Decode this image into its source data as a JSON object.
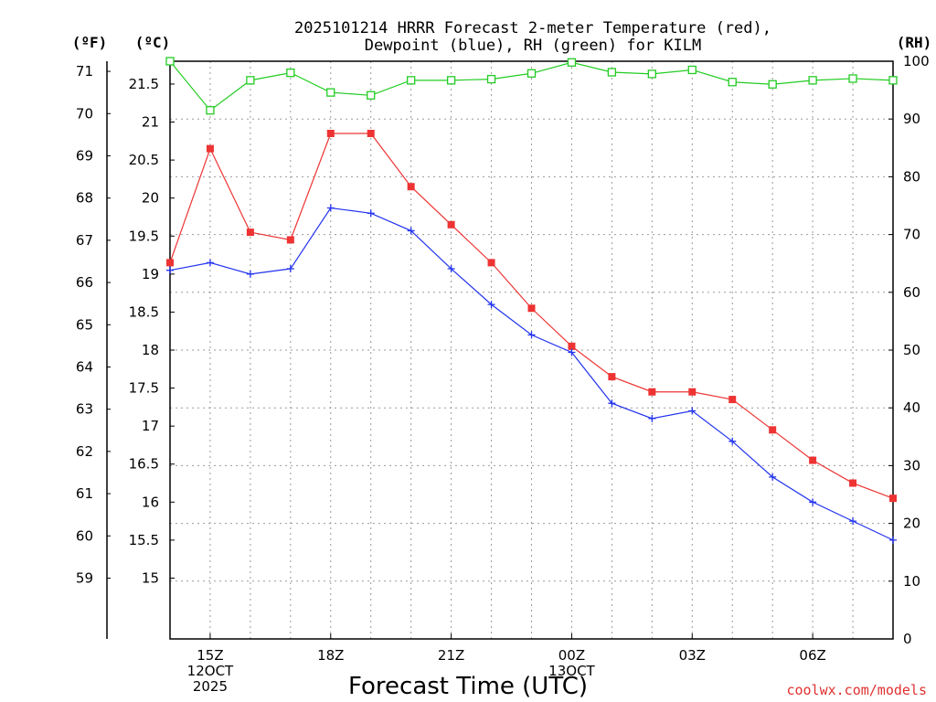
{
  "chart_data": {
    "type": "line",
    "title_line1": "2025101214 HRRR Forecast 2-meter Temperature (red),",
    "title_line2": "Dewpoint (blue), RH (green) for KILM",
    "units": {
      "left_outer": "(ºF)",
      "left_inner": "(ºC)",
      "right": "(RH)"
    },
    "xlabel": "Forecast Time (UTC)",
    "credit": "coolwx.com/models",
    "x_hours": [
      14,
      15,
      16,
      17,
      18,
      19,
      20,
      21,
      22,
      23,
      24,
      25,
      26,
      27,
      28,
      29,
      30,
      31,
      32
    ],
    "x_ticks": [
      {
        "hour": 15,
        "lines": [
          "15Z",
          "12OCT",
          "2025"
        ]
      },
      {
        "hour": 18,
        "lines": [
          "18Z"
        ]
      },
      {
        "hour": 21,
        "lines": [
          "21Z"
        ]
      },
      {
        "hour": 24,
        "lines": [
          "00Z",
          "13OCT"
        ]
      },
      {
        "hour": 27,
        "lines": [
          "03Z"
        ]
      },
      {
        "hour": 30,
        "lines": [
          "06Z"
        ]
      }
    ],
    "xlim": [
      14,
      32
    ],
    "celsius_axis": {
      "range": [
        14.2,
        21.8
      ],
      "ticks": [
        15,
        15.5,
        16,
        16.5,
        17,
        17.5,
        18,
        18.5,
        19,
        19.5,
        20,
        20.5,
        21,
        21.5
      ]
    },
    "fahrenheit_ticks": [
      59,
      60,
      61,
      62,
      63,
      64,
      65,
      66,
      67,
      68,
      69,
      70,
      71
    ],
    "rh_axis": {
      "range": [
        0,
        100
      ],
      "ticks": [
        0,
        10,
        20,
        30,
        40,
        50,
        60,
        70,
        80,
        90,
        100
      ]
    },
    "series": [
      {
        "name": "Temperature",
        "unit": "C",
        "color": "#ee3333",
        "marker": "filled-square",
        "values": [
          19.15,
          20.65,
          19.55,
          19.45,
          20.85,
          20.85,
          20.15,
          19.65,
          19.15,
          18.55,
          18.05,
          17.65,
          17.45,
          17.45,
          17.35,
          16.95,
          16.55,
          16.25,
          16.05
        ]
      },
      {
        "name": "Dewpoint",
        "unit": "C",
        "color": "#2233ee",
        "marker": "plus",
        "values": [
          19.05,
          19.15,
          19.0,
          19.07,
          19.87,
          19.8,
          19.57,
          19.07,
          18.6,
          18.2,
          17.97,
          17.3,
          17.1,
          17.2,
          16.8,
          16.33,
          16.0,
          15.75,
          15.5
        ]
      },
      {
        "name": "RH",
        "unit": "%",
        "color": "#22cc22",
        "marker": "open-square",
        "values": [
          100,
          91.5,
          96.7,
          98.0,
          94.6,
          94.1,
          96.7,
          96.7,
          96.9,
          97.9,
          99.8,
          98.1,
          97.8,
          98.5,
          96.4,
          96.0,
          96.7,
          97.0,
          96.7
        ]
      }
    ]
  }
}
